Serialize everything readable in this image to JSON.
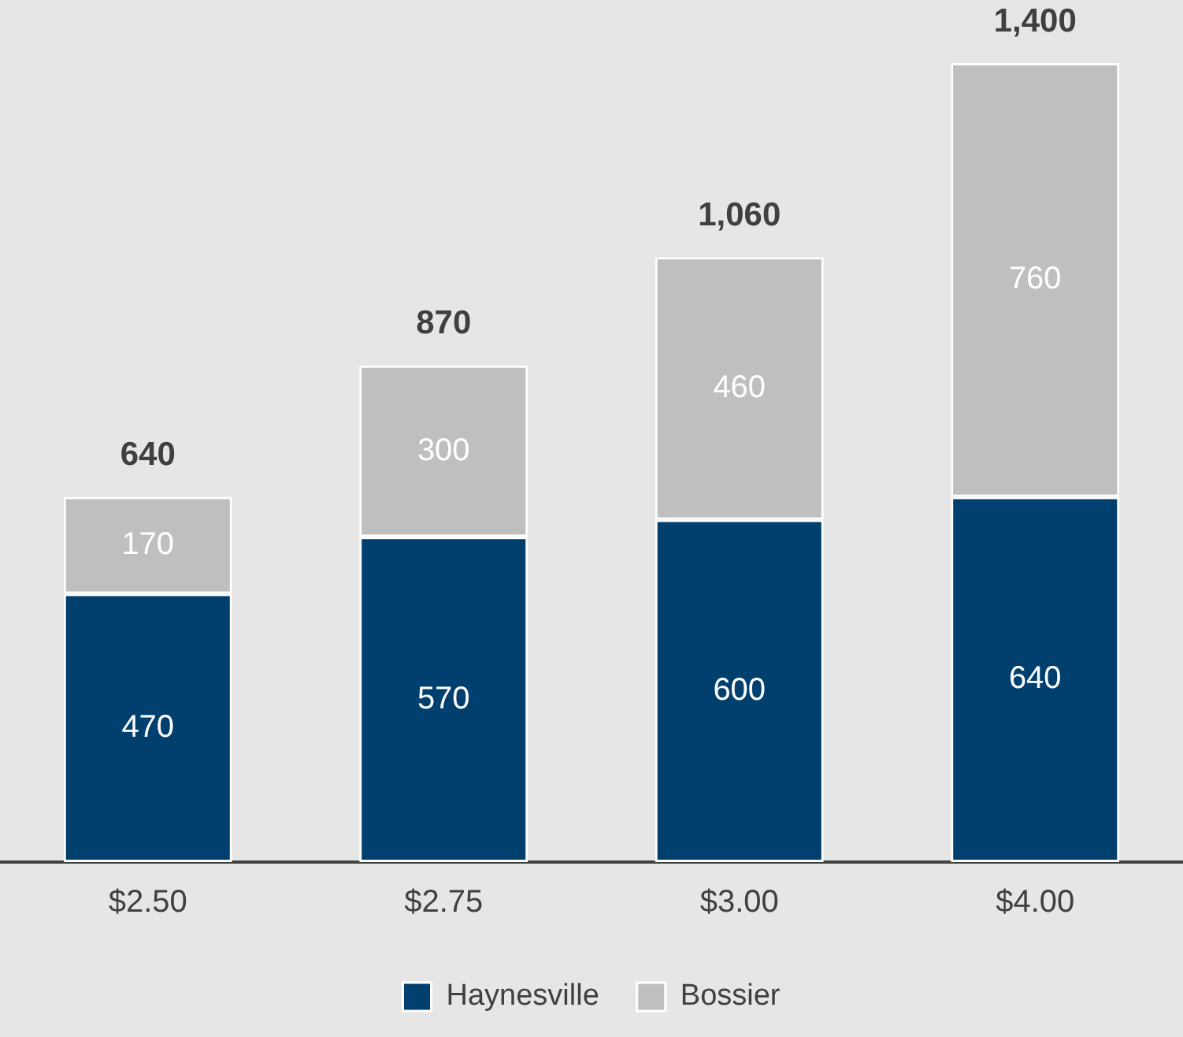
{
  "chart_data": {
    "type": "bar",
    "stacked": true,
    "data_labels": true,
    "legend": "bottom",
    "grid": false,
    "categories": [
      "$2.50",
      "$2.75",
      "$3.00",
      "$4.00"
    ],
    "series": [
      {
        "name": "Haynesville",
        "color": "#003f6e",
        "values": [
          470,
          570,
          600,
          640
        ]
      },
      {
        "name": "Bossier",
        "color": "#bfbfbf",
        "values": [
          170,
          300,
          460,
          760
        ]
      }
    ],
    "totals": [
      "640",
      "870",
      "1,060",
      "1,400"
    ]
  }
}
